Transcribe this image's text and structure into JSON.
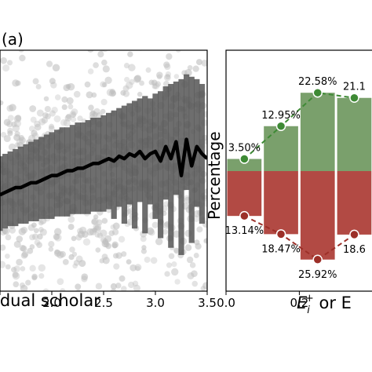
{
  "panel_label": "(a)",
  "chart_data": [
    {
      "type": "scatter",
      "xlabel": "idual scholar",
      "x_ticks": [
        "2.0",
        "2.5",
        "3.0",
        "3.5"
      ],
      "xlim": [
        1.5,
        3.5
      ],
      "box_color": "#555555",
      "point_color": "#bdbdbd",
      "median_line": {
        "x": [
          1.5,
          1.55,
          1.6,
          1.65,
          1.7,
          1.75,
          1.8,
          1.85,
          1.9,
          1.95,
          2.0,
          2.05,
          2.1,
          2.15,
          2.2,
          2.25,
          2.3,
          2.35,
          2.4,
          2.45,
          2.5,
          2.55,
          2.6,
          2.65,
          2.7,
          2.75,
          2.8,
          2.85,
          2.9,
          2.95,
          3.0,
          3.05,
          3.1,
          3.15,
          3.2,
          3.25,
          3.3,
          3.35,
          3.4,
          3.45,
          3.5
        ],
        "y": [
          0.4,
          0.41,
          0.42,
          0.43,
          0.43,
          0.44,
          0.45,
          0.45,
          0.46,
          0.47,
          0.48,
          0.48,
          0.49,
          0.5,
          0.5,
          0.51,
          0.51,
          0.52,
          0.53,
          0.53,
          0.54,
          0.55,
          0.54,
          0.56,
          0.55,
          0.57,
          0.56,
          0.58,
          0.55,
          0.57,
          0.58,
          0.54,
          0.6,
          0.55,
          0.62,
          0.48,
          0.63,
          0.52,
          0.6,
          0.57,
          0.55
        ]
      },
      "boxes": {
        "x": [
          1.5,
          1.55,
          1.6,
          1.65,
          1.7,
          1.75,
          1.8,
          1.85,
          1.9,
          1.95,
          2.0,
          2.05,
          2.1,
          2.15,
          2.2,
          2.25,
          2.3,
          2.35,
          2.4,
          2.45,
          2.5,
          2.55,
          2.6,
          2.65,
          2.7,
          2.75,
          2.8,
          2.85,
          2.9,
          2.95,
          3.0,
          3.05,
          3.1,
          3.15,
          3.2,
          3.25,
          3.3,
          3.35,
          3.4,
          3.45
        ],
        "low": [
          0.25,
          0.26,
          0.27,
          0.27,
          0.28,
          0.28,
          0.29,
          0.29,
          0.3,
          0.3,
          0.3,
          0.31,
          0.31,
          0.31,
          0.32,
          0.32,
          0.32,
          0.32,
          0.33,
          0.33,
          0.33,
          0.34,
          0.3,
          0.35,
          0.28,
          0.36,
          0.26,
          0.37,
          0.24,
          0.36,
          0.3,
          0.22,
          0.38,
          0.18,
          0.4,
          0.15,
          0.42,
          0.2,
          0.35,
          0.28
        ],
        "high": [
          0.56,
          0.57,
          0.58,
          0.59,
          0.6,
          0.61,
          0.62,
          0.63,
          0.64,
          0.65,
          0.66,
          0.67,
          0.68,
          0.68,
          0.69,
          0.7,
          0.7,
          0.71,
          0.72,
          0.72,
          0.73,
          0.74,
          0.75,
          0.76,
          0.77,
          0.78,
          0.79,
          0.8,
          0.81,
          0.8,
          0.82,
          0.83,
          0.85,
          0.86,
          0.87,
          0.88,
          0.9,
          0.89,
          0.88,
          0.86
        ]
      }
    },
    {
      "type": "bar",
      "ylabel": "Percentage",
      "xlabel_prefix": "E",
      "xlabel_sub": "i",
      "xlabel_sup": "+",
      "xlabel_suffix": " or E",
      "x_ticks": [
        "0.0",
        "0.2"
      ],
      "positive_color": "#7aa06c",
      "negative_color": "#b24a44",
      "positive_line_color": "#3e8a35",
      "negative_line_color": "#9c2f28",
      "positive": {
        "x": [
          0.05,
          0.15,
          0.25,
          0.35
        ],
        "values": [
          3.5,
          12.95,
          22.58,
          21.1
        ],
        "labels": [
          "3.50%",
          "12.95%",
          "22.58%",
          "21.1"
        ]
      },
      "negative": {
        "x": [
          0.05,
          0.15,
          0.25,
          0.35
        ],
        "values": [
          13.14,
          18.47,
          25.92,
          18.6
        ],
        "labels": [
          "13.14%",
          "18.47%",
          "25.92%",
          "18.6"
        ]
      }
    }
  ]
}
